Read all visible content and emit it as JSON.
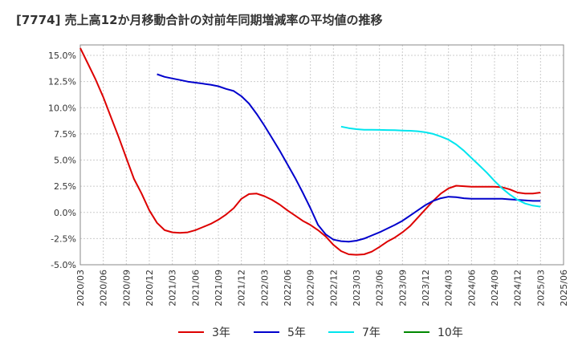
{
  "chart_data": {
    "type": "line",
    "title": "[7774]  売上高12か月移動合計の対前年同期増減率の平均値の推移",
    "xlabel": "",
    "ylabel": "",
    "y_ticks": [
      "15.0%",
      "12.5%",
      "10.0%",
      "7.5%",
      "5.0%",
      "2.5%",
      "0.0%",
      "-2.5%",
      "-5.0%"
    ],
    "ylim": [
      -5.0,
      16.0
    ],
    "x_ticks": [
      "2020/03",
      "2020/06",
      "2020/09",
      "2020/12",
      "2021/03",
      "2021/06",
      "2021/09",
      "2021/12",
      "2022/03",
      "2022/06",
      "2022/09",
      "2022/12",
      "2023/03",
      "2023/06",
      "2023/09",
      "2023/12",
      "2024/03",
      "2024/06",
      "2024/09",
      "2024/12",
      "2025/03",
      "2025/06"
    ],
    "grid": true,
    "legend_position": "bottom",
    "series": [
      {
        "name": "3年",
        "color": "#dd0000",
        "x": [
          "2020/03",
          "2020/04",
          "2020/05",
          "2020/06",
          "2020/07",
          "2020/08",
          "2020/09",
          "2020/10",
          "2020/11",
          "2020/12",
          "2021/01",
          "2021/02",
          "2021/03",
          "2021/04",
          "2021/05",
          "2021/06",
          "2021/07",
          "2021/08",
          "2021/09",
          "2021/10",
          "2021/11",
          "2021/12",
          "2022/01",
          "2022/02",
          "2022/03",
          "2022/04",
          "2022/05",
          "2022/06",
          "2022/07",
          "2022/08",
          "2022/09",
          "2022/10",
          "2022/11",
          "2022/12",
          "2023/01",
          "2023/02",
          "2023/03",
          "2023/04",
          "2023/05",
          "2023/06",
          "2023/07",
          "2023/08",
          "2023/09",
          "2023/10",
          "2023/11",
          "2023/12",
          "2024/01",
          "2024/02",
          "2024/03",
          "2024/04",
          "2024/05",
          "2024/06",
          "2024/07",
          "2024/08",
          "2024/09",
          "2024/10",
          "2024/11",
          "2024/12",
          "2025/01",
          "2025/02",
          "2025/03"
        ],
        "values": [
          15.7,
          14.2,
          12.7,
          11.0,
          9.1,
          7.2,
          5.2,
          3.2,
          1.8,
          0.2,
          -1.0,
          -1.7,
          -1.9,
          -1.95,
          -1.9,
          -1.7,
          -1.4,
          -1.1,
          -0.7,
          -0.2,
          0.4,
          1.3,
          1.75,
          1.8,
          1.55,
          1.2,
          0.75,
          0.2,
          -0.3,
          -0.8,
          -1.2,
          -1.7,
          -2.3,
          -3.1,
          -3.7,
          -4.0,
          -4.05,
          -4.0,
          -3.75,
          -3.3,
          -2.8,
          -2.4,
          -1.9,
          -1.3,
          -0.5,
          0.3,
          1.1,
          1.8,
          2.3,
          2.55,
          2.5,
          2.45,
          2.45,
          2.45,
          2.45,
          2.4,
          2.2,
          1.9,
          1.8,
          1.8,
          1.9
        ]
      },
      {
        "name": "5年",
        "color": "#0000cc",
        "x": [
          "2021/01",
          "2021/02",
          "2021/03",
          "2021/04",
          "2021/05",
          "2021/06",
          "2021/07",
          "2021/08",
          "2021/09",
          "2021/10",
          "2021/11",
          "2021/12",
          "2022/01",
          "2022/02",
          "2022/03",
          "2022/04",
          "2022/05",
          "2022/06",
          "2022/07",
          "2022/08",
          "2022/09",
          "2022/10",
          "2022/11",
          "2022/12",
          "2023/01",
          "2023/02",
          "2023/03",
          "2023/04",
          "2023/05",
          "2023/06",
          "2023/07",
          "2023/08",
          "2023/09",
          "2023/10",
          "2023/11",
          "2023/12",
          "2024/01",
          "2024/02",
          "2024/03",
          "2024/04",
          "2024/05",
          "2024/06",
          "2024/07",
          "2024/08",
          "2024/09",
          "2024/10",
          "2024/11",
          "2024/12",
          "2025/01",
          "2025/02",
          "2025/03"
        ],
        "values": [
          13.2,
          12.95,
          12.8,
          12.65,
          12.5,
          12.4,
          12.3,
          12.2,
          12.05,
          11.8,
          11.6,
          11.1,
          10.4,
          9.4,
          8.3,
          7.1,
          5.9,
          4.6,
          3.3,
          1.9,
          0.4,
          -1.2,
          -2.1,
          -2.6,
          -2.75,
          -2.8,
          -2.7,
          -2.5,
          -2.2,
          -1.9,
          -1.55,
          -1.2,
          -0.8,
          -0.3,
          0.2,
          0.7,
          1.1,
          1.35,
          1.5,
          1.45,
          1.35,
          1.3,
          1.3,
          1.3,
          1.3,
          1.3,
          1.25,
          1.2,
          1.15,
          1.1,
          1.1
        ]
      },
      {
        "name": "7年",
        "color": "#00e5ee",
        "x": [
          "2023/01",
          "2023/02",
          "2023/03",
          "2023/04",
          "2023/05",
          "2023/06",
          "2023/07",
          "2023/08",
          "2023/09",
          "2023/10",
          "2023/11",
          "2023/12",
          "2024/01",
          "2024/02",
          "2024/03",
          "2024/04",
          "2024/05",
          "2024/06",
          "2024/07",
          "2024/08",
          "2024/09",
          "2024/10",
          "2024/11",
          "2024/12",
          "2025/01",
          "2025/02",
          "2025/03"
        ],
        "values": [
          8.2,
          8.05,
          7.95,
          7.9,
          7.9,
          7.88,
          7.87,
          7.85,
          7.82,
          7.8,
          7.75,
          7.65,
          7.5,
          7.25,
          6.95,
          6.5,
          5.9,
          5.2,
          4.5,
          3.8,
          3.0,
          2.3,
          1.7,
          1.2,
          0.85,
          0.65,
          0.55
        ]
      },
      {
        "name": "10年",
        "color": "#008800",
        "x": [],
        "values": []
      }
    ]
  }
}
